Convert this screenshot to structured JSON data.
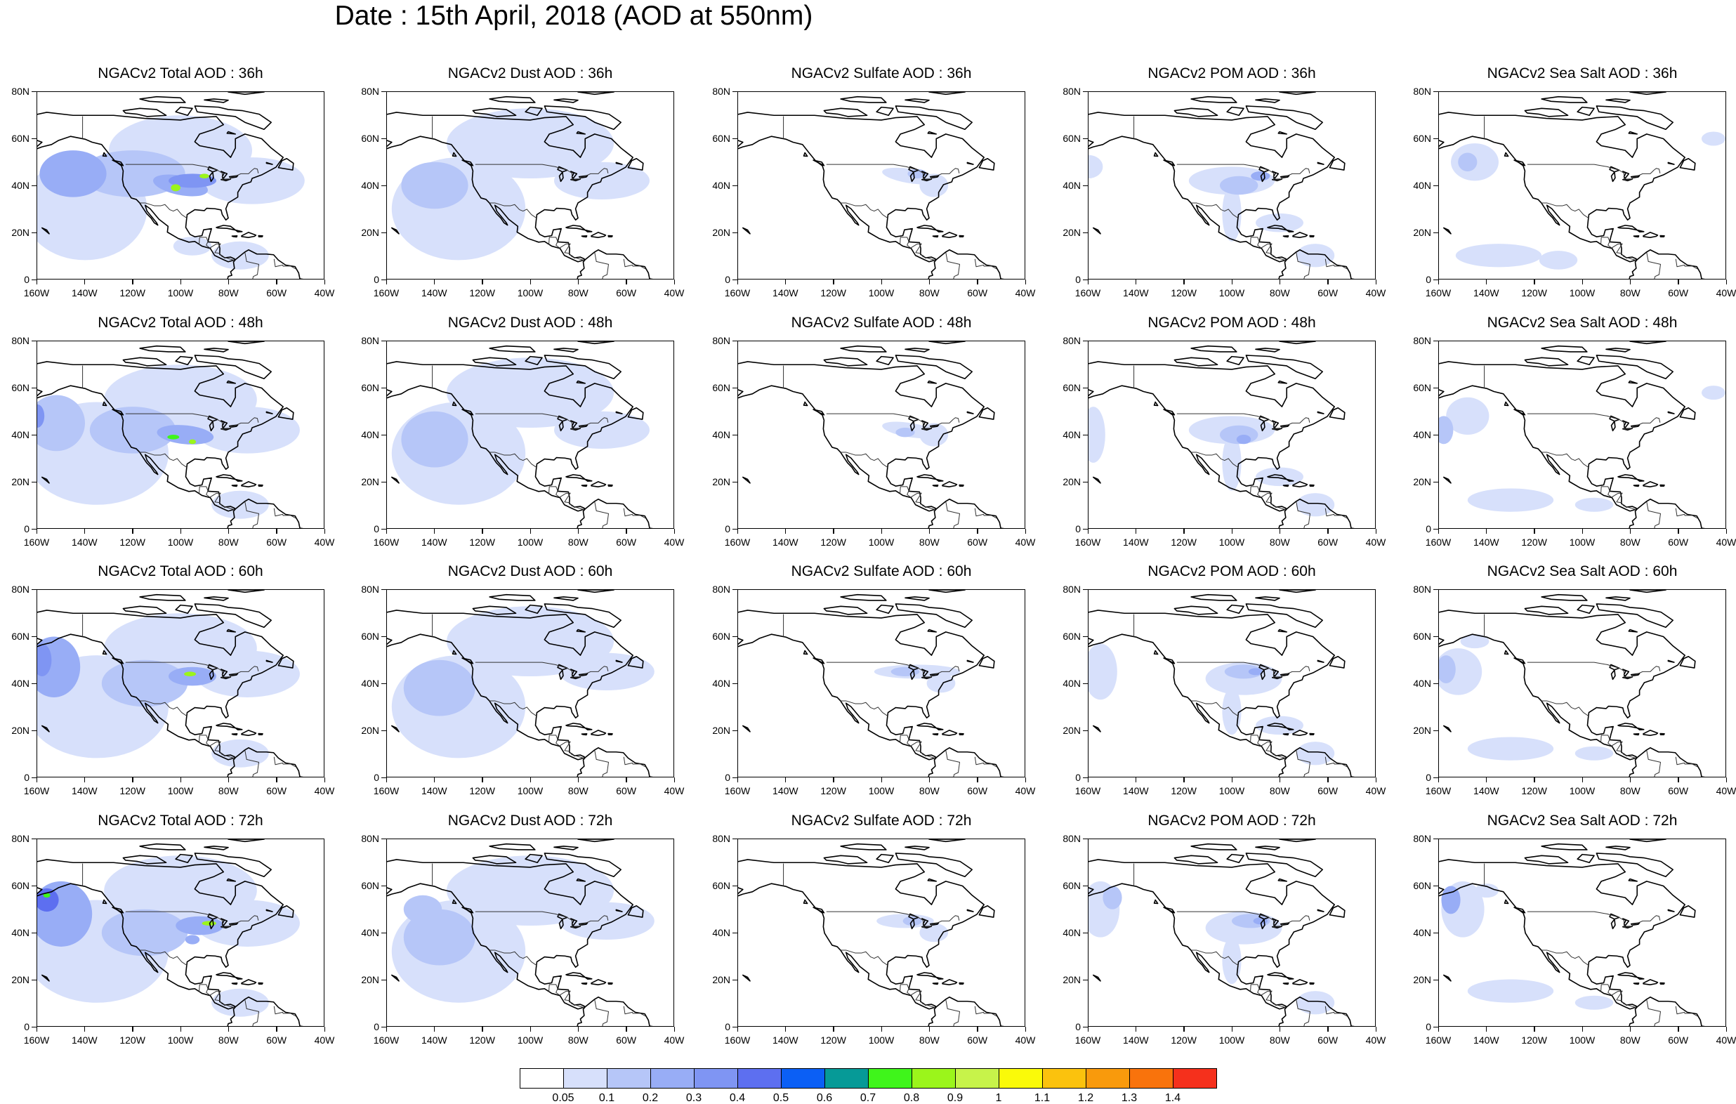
{
  "title": "Date : 15th April, 2018 (AOD at 550nm)",
  "axes": {
    "lon_labels": [
      "160W",
      "140W",
      "120W",
      "100W",
      "80W",
      "60W",
      "40W"
    ],
    "lat_labels": [
      "80N",
      "60N",
      "40N",
      "20N",
      "0"
    ],
    "lon_range": [
      -160,
      -40
    ],
    "lat_range": [
      0,
      80
    ]
  },
  "variables": [
    {
      "key": "total",
      "name": "NGACv2 Total AOD"
    },
    {
      "key": "dust",
      "name": "NGACv2 Dust AOD"
    },
    {
      "key": "sulfate",
      "name": "NGACv2 Sulfate AOD"
    },
    {
      "key": "pom",
      "name": "NGACv2 POM AOD"
    },
    {
      "key": "seasalt",
      "name": "NGACv2 Sea Salt AOD"
    }
  ],
  "panel_titles": [
    [
      "NGACv2 Total AOD : 36h",
      "NGACv2 Dust AOD : 36h",
      "NGACv2 Sulfate AOD : 36h",
      "NGACv2 POM AOD : 36h",
      "NGACv2 Sea Salt AOD : 36h"
    ],
    [
      "NGACv2 Total AOD : 48h",
      "NGACv2 Dust AOD : 48h",
      "NGACv2 Sulfate AOD : 48h",
      "NGACv2 POM AOD : 48h",
      "NGACv2 Sea Salt AOD : 48h"
    ],
    [
      "NGACv2 Total AOD : 60h",
      "NGACv2 Dust AOD : 60h",
      "NGACv2 Sulfate AOD : 60h",
      "NGACv2 POM AOD : 60h",
      "NGACv2 Sea Salt AOD : 60h"
    ],
    [
      "NGACv2 Total AOD : 72h",
      "NGACv2 Dust AOD : 72h",
      "NGACv2 Sulfate AOD : 72h",
      "NGACv2 POM AOD : 72h",
      "NGACv2 Sea Salt  AOD : 72h"
    ]
  ],
  "forecast_hours": [
    "36h",
    "48h",
    "60h",
    "72h"
  ],
  "colorbar": {
    "labels": [
      "0.05",
      "0.1",
      "0.2",
      "0.3",
      "0.4",
      "0.5",
      "0.6",
      "0.7",
      "0.8",
      "0.9",
      "1",
      "1.1",
      "1.2",
      "1.3",
      "1.4"
    ],
    "colors": [
      "#ffffff",
      "#d7e0fb",
      "#b6c6f8",
      "#98adf6",
      "#7f95f3",
      "#5d6ff0",
      "#0b5ff5",
      "#069a97",
      "#3ff51b",
      "#9bf51b",
      "#c7f34a",
      "#fafa09",
      "#fbc20d",
      "#f99a0c",
      "#f9730c",
      "#f5301c"
    ]
  }
}
